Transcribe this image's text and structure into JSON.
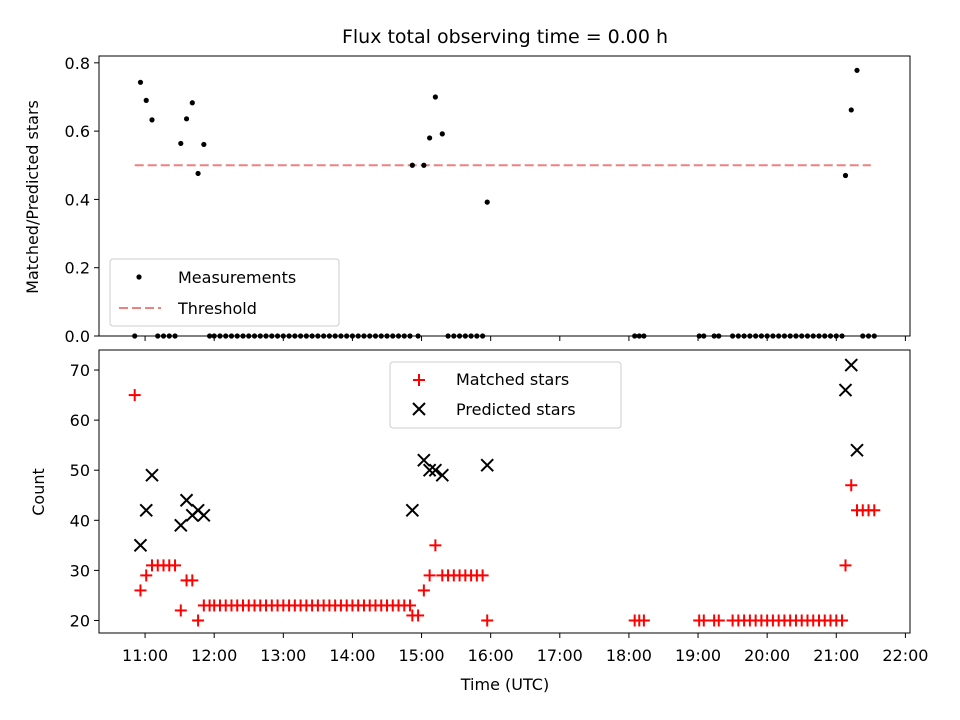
{
  "chart_data": [
    {
      "type": "scatter",
      "title": "Flux total observing time = 0.00 h",
      "xlabel": "",
      "ylabel": "Matched/Predicted stars",
      "xlim": [
        "10:20",
        "22:04"
      ],
      "ylim": [
        0,
        0.82
      ],
      "yticks": [
        0.0,
        0.2,
        0.4,
        0.6,
        0.8
      ],
      "ytick_labels": [
        "0.0",
        "0.2",
        "0.4",
        "0.6",
        "0.8"
      ],
      "legend_position": "lower-left",
      "series": [
        {
          "name": "Measurements",
          "marker": "dot",
          "color": "#000000",
          "points": [
            [
              "10:51",
              0.0
            ],
            [
              "10:56",
              0.743
            ],
            [
              "11:01",
              0.69
            ],
            [
              "11:06",
              0.633
            ],
            [
              "11:11",
              0.0
            ],
            [
              "11:16",
              0.0
            ],
            [
              "11:21",
              0.0
            ],
            [
              "11:26",
              0.0
            ],
            [
              "11:31",
              0.564
            ],
            [
              "11:36",
              0.636
            ],
            [
              "11:41",
              0.683
            ],
            [
              "11:46",
              0.476
            ],
            [
              "11:51",
              0.561
            ],
            [
              "11:56",
              0.0
            ],
            [
              "12:00",
              0.0
            ],
            [
              "12:05",
              0.0
            ],
            [
              "12:10",
              0.0
            ],
            [
              "12:15",
              0.0
            ],
            [
              "12:20",
              0.0
            ],
            [
              "12:25",
              0.0
            ],
            [
              "12:30",
              0.0
            ],
            [
              "12:35",
              0.0
            ],
            [
              "12:40",
              0.0
            ],
            [
              "12:45",
              0.0
            ],
            [
              "12:50",
              0.0
            ],
            [
              "12:55",
              0.0
            ],
            [
              "13:00",
              0.0
            ],
            [
              "13:05",
              0.0
            ],
            [
              "13:10",
              0.0
            ],
            [
              "13:15",
              0.0
            ],
            [
              "13:20",
              0.0
            ],
            [
              "13:25",
              0.0
            ],
            [
              "13:30",
              0.0
            ],
            [
              "13:35",
              0.0
            ],
            [
              "13:40",
              0.0
            ],
            [
              "13:45",
              0.0
            ],
            [
              "13:50",
              0.0
            ],
            [
              "13:55",
              0.0
            ],
            [
              "14:00",
              0.0
            ],
            [
              "14:05",
              0.0
            ],
            [
              "14:10",
              0.0
            ],
            [
              "14:15",
              0.0
            ],
            [
              "14:20",
              0.0
            ],
            [
              "14:25",
              0.0
            ],
            [
              "14:30",
              0.0
            ],
            [
              "14:35",
              0.0
            ],
            [
              "14:40",
              0.0
            ],
            [
              "14:45",
              0.0
            ],
            [
              "14:50",
              0.0
            ],
            [
              "14:52",
              0.5
            ],
            [
              "14:57",
              0.0
            ],
            [
              "15:02",
              0.5
            ],
            [
              "15:07",
              0.58
            ],
            [
              "15:12",
              0.7
            ],
            [
              "15:18",
              0.592
            ],
            [
              "15:23",
              0.0
            ],
            [
              "15:28",
              0.0
            ],
            [
              "15:33",
              0.0
            ],
            [
              "15:38",
              0.0
            ],
            [
              "15:43",
              0.0
            ],
            [
              "15:48",
              0.0
            ],
            [
              "15:53",
              0.0
            ],
            [
              "15:57",
              0.392
            ],
            [
              "18:05",
              0.0
            ],
            [
              "18:09",
              0.0
            ],
            [
              "18:13",
              0.0
            ],
            [
              "19:01",
              0.0
            ],
            [
              "19:05",
              0.0
            ],
            [
              "19:14",
              0.0
            ],
            [
              "19:18",
              0.0
            ],
            [
              "19:30",
              0.0
            ],
            [
              "19:35",
              0.0
            ],
            [
              "19:40",
              0.0
            ],
            [
              "19:45",
              0.0
            ],
            [
              "19:50",
              0.0
            ],
            [
              "19:55",
              0.0
            ],
            [
              "20:00",
              0.0
            ],
            [
              "20:05",
              0.0
            ],
            [
              "20:10",
              0.0
            ],
            [
              "20:15",
              0.0
            ],
            [
              "20:20",
              0.0
            ],
            [
              "20:25",
              0.0
            ],
            [
              "20:30",
              0.0
            ],
            [
              "20:35",
              0.0
            ],
            [
              "20:40",
              0.0
            ],
            [
              "20:45",
              0.0
            ],
            [
              "20:50",
              0.0
            ],
            [
              "20:55",
              0.0
            ],
            [
              "21:00",
              0.0
            ],
            [
              "21:05",
              0.0
            ],
            [
              "21:08",
              0.47
            ],
            [
              "21:13",
              0.662
            ],
            [
              "21:18",
              0.778
            ],
            [
              "21:23",
              0.0
            ],
            [
              "21:28",
              0.0
            ],
            [
              "21:33",
              0.0
            ]
          ]
        },
        {
          "name": "Threshold",
          "line_style": "dashed",
          "color": "#f08080",
          "x": [
            "10:51",
            "21:30"
          ],
          "values": [
            0.5,
            0.5
          ]
        }
      ]
    },
    {
      "type": "scatter",
      "title": "",
      "xlabel": "Time (UTC)",
      "ylabel": "Count",
      "xlim": [
        "10:20",
        "22:04"
      ],
      "ylim": [
        17.5,
        74
      ],
      "xticks": [
        "11:00",
        "12:00",
        "13:00",
        "14:00",
        "15:00",
        "16:00",
        "17:00",
        "18:00",
        "19:00",
        "20:00",
        "21:00",
        "22:00"
      ],
      "xtick_labels": [
        "11:00",
        "12:00",
        "13:00",
        "14:00",
        "15:00",
        "16:00",
        "17:00",
        "18:00",
        "19:00",
        "20:00",
        "21:00",
        "22:00"
      ],
      "yticks": [
        20,
        30,
        40,
        50,
        60,
        70
      ],
      "ytick_labels": [
        "20",
        "30",
        "40",
        "50",
        "60",
        "70"
      ],
      "legend_position": "upper-center",
      "series": [
        {
          "name": "Matched stars",
          "marker": "plus",
          "color": "#ff0000",
          "points": [
            [
              "10:51",
              65
            ],
            [
              "10:56",
              26
            ],
            [
              "11:01",
              29
            ],
            [
              "11:06",
              31
            ],
            [
              "11:11",
              31
            ],
            [
              "11:16",
              31
            ],
            [
              "11:21",
              31
            ],
            [
              "11:26",
              31
            ],
            [
              "11:31",
              22
            ],
            [
              "11:36",
              28
            ],
            [
              "11:41",
              28
            ],
            [
              "11:46",
              20
            ],
            [
              "11:51",
              23
            ],
            [
              "11:56",
              23
            ],
            [
              "12:00",
              23
            ],
            [
              "12:05",
              23
            ],
            [
              "12:10",
              23
            ],
            [
              "12:15",
              23
            ],
            [
              "12:20",
              23
            ],
            [
              "12:25",
              23
            ],
            [
              "12:30",
              23
            ],
            [
              "12:35",
              23
            ],
            [
              "12:40",
              23
            ],
            [
              "12:45",
              23
            ],
            [
              "12:50",
              23
            ],
            [
              "12:55",
              23
            ],
            [
              "13:00",
              23
            ],
            [
              "13:05",
              23
            ],
            [
              "13:10",
              23
            ],
            [
              "13:15",
              23
            ],
            [
              "13:20",
              23
            ],
            [
              "13:25",
              23
            ],
            [
              "13:30",
              23
            ],
            [
              "13:35",
              23
            ],
            [
              "13:40",
              23
            ],
            [
              "13:45",
              23
            ],
            [
              "13:50",
              23
            ],
            [
              "13:55",
              23
            ],
            [
              "14:00",
              23
            ],
            [
              "14:05",
              23
            ],
            [
              "14:10",
              23
            ],
            [
              "14:15",
              23
            ],
            [
              "14:20",
              23
            ],
            [
              "14:25",
              23
            ],
            [
              "14:30",
              23
            ],
            [
              "14:35",
              23
            ],
            [
              "14:40",
              23
            ],
            [
              "14:45",
              23
            ],
            [
              "14:50",
              23
            ],
            [
              "14:52",
              21
            ],
            [
              "14:57",
              21
            ],
            [
              "15:02",
              26
            ],
            [
              "15:07",
              29
            ],
            [
              "15:12",
              35
            ],
            [
              "15:18",
              29
            ],
            [
              "15:23",
              29
            ],
            [
              "15:28",
              29
            ],
            [
              "15:33",
              29
            ],
            [
              "15:38",
              29
            ],
            [
              "15:43",
              29
            ],
            [
              "15:48",
              29
            ],
            [
              "15:53",
              29
            ],
            [
              "15:57",
              20
            ],
            [
              "18:05",
              20
            ],
            [
              "18:09",
              20
            ],
            [
              "18:13",
              20
            ],
            [
              "19:01",
              20
            ],
            [
              "19:05",
              20
            ],
            [
              "19:14",
              20
            ],
            [
              "19:18",
              20
            ],
            [
              "19:30",
              20
            ],
            [
              "19:35",
              20
            ],
            [
              "19:40",
              20
            ],
            [
              "19:45",
              20
            ],
            [
              "19:50",
              20
            ],
            [
              "19:55",
              20
            ],
            [
              "20:00",
              20
            ],
            [
              "20:05",
              20
            ],
            [
              "20:10",
              20
            ],
            [
              "20:15",
              20
            ],
            [
              "20:20",
              20
            ],
            [
              "20:25",
              20
            ],
            [
              "20:30",
              20
            ],
            [
              "20:35",
              20
            ],
            [
              "20:40",
              20
            ],
            [
              "20:45",
              20
            ],
            [
              "20:50",
              20
            ],
            [
              "20:55",
              20
            ],
            [
              "21:00",
              20
            ],
            [
              "21:05",
              20
            ],
            [
              "21:08",
              31
            ],
            [
              "21:13",
              47
            ],
            [
              "21:18",
              42
            ],
            [
              "21:23",
              42
            ],
            [
              "21:28",
              42
            ],
            [
              "21:33",
              42
            ]
          ]
        },
        {
          "name": "Predicted stars",
          "marker": "x",
          "color": "#000000",
          "points": [
            [
              "10:56",
              35
            ],
            [
              "11:01",
              42
            ],
            [
              "11:06",
              49
            ],
            [
              "11:31",
              39
            ],
            [
              "11:36",
              44
            ],
            [
              "11:41",
              41
            ],
            [
              "11:46",
              42
            ],
            [
              "11:51",
              41
            ],
            [
              "14:52",
              42
            ],
            [
              "15:02",
              52
            ],
            [
              "15:07",
              50
            ],
            [
              "15:12",
              50
            ],
            [
              "15:18",
              49
            ],
            [
              "15:57",
              51
            ],
            [
              "21:08",
              66
            ],
            [
              "21:13",
              71
            ],
            [
              "21:18",
              54
            ]
          ]
        }
      ]
    }
  ]
}
